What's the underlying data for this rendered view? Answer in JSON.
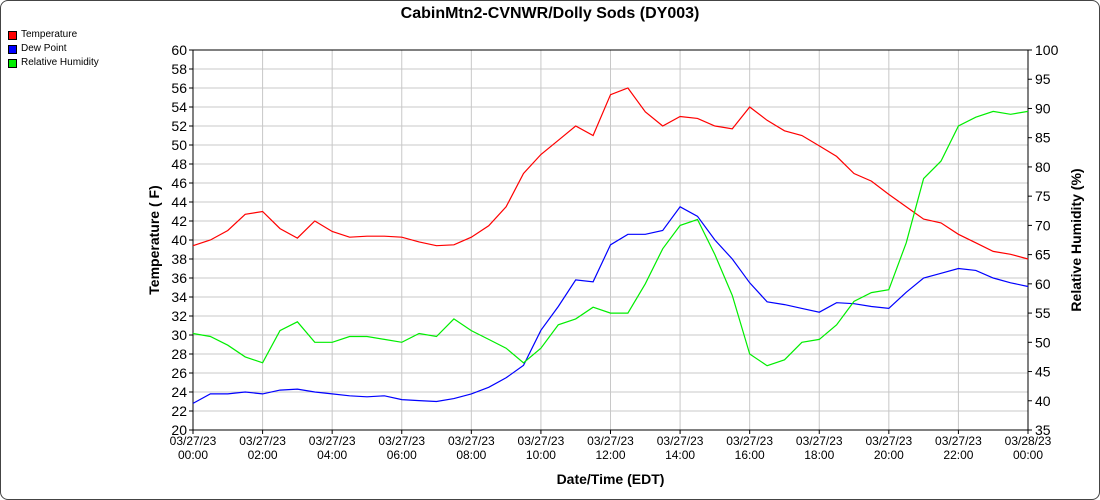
{
  "chart_data": {
    "type": "line",
    "title": "CabinMtn2-CVNWR/Dolly Sods (DY003)",
    "xlabel": "Date/Time (EDT)",
    "ylabel": "Temperature ( F)",
    "y2label": "Relative Humidity (%)",
    "ylim": [
      20,
      60
    ],
    "y2lim": [
      35,
      100
    ],
    "yticks": [
      20,
      22,
      24,
      26,
      28,
      30,
      32,
      34,
      36,
      38,
      40,
      42,
      44,
      46,
      48,
      50,
      52,
      54,
      56,
      58,
      60
    ],
    "y2ticks": [
      35,
      40,
      45,
      50,
      55,
      60,
      65,
      70,
      75,
      80,
      85,
      90,
      95,
      100
    ],
    "xticks": [
      {
        "hour": 0,
        "date": "03/27/23",
        "time": "00:00"
      },
      {
        "hour": 2,
        "date": "03/27/23",
        "time": "02:00"
      },
      {
        "hour": 4,
        "date": "03/27/23",
        "time": "04:00"
      },
      {
        "hour": 6,
        "date": "03/27/23",
        "time": "06:00"
      },
      {
        "hour": 8,
        "date": "03/27/23",
        "time": "08:00"
      },
      {
        "hour": 10,
        "date": "03/27/23",
        "time": "10:00"
      },
      {
        "hour": 12,
        "date": "03/27/23",
        "time": "12:00"
      },
      {
        "hour": 14,
        "date": "03/27/23",
        "time": "14:00"
      },
      {
        "hour": 16,
        "date": "03/27/23",
        "time": "16:00"
      },
      {
        "hour": 18,
        "date": "03/27/23",
        "time": "18:00"
      },
      {
        "hour": 20,
        "date": "03/27/23",
        "time": "20:00"
      },
      {
        "hour": 22,
        "date": "03/27/23",
        "time": "22:00"
      },
      {
        "hour": 24,
        "date": "03/28/23",
        "time": "00:00"
      }
    ],
    "grid": true,
    "legend_position": "top-left",
    "x_hours": [
      0,
      0.5,
      1,
      1.5,
      2,
      2.5,
      3,
      3.5,
      4,
      4.5,
      5,
      5.5,
      6,
      6.5,
      7,
      7.5,
      8,
      8.5,
      9,
      9.5,
      10,
      10.5,
      11,
      11.5,
      12,
      12.5,
      13,
      13.5,
      14,
      14.5,
      15,
      15.5,
      16,
      16.5,
      17,
      17.5,
      18,
      18.5,
      19,
      19.5,
      20,
      20.5,
      21,
      21.5,
      22,
      22.5,
      23,
      23.5,
      24
    ],
    "series": [
      {
        "name": "Temperature",
        "axis": "left",
        "color": "#ff0000",
        "values": [
          39.4,
          40.0,
          41.0,
          42.7,
          43.0,
          41.2,
          40.2,
          42.0,
          40.9,
          40.3,
          40.4,
          40.4,
          40.3,
          39.8,
          39.4,
          39.5,
          40.3,
          41.5,
          43.5,
          47.0,
          49.0,
          50.5,
          52.0,
          51.0,
          55.3,
          56.0,
          53.5,
          52.0,
          53.0,
          52.8,
          52.0,
          51.7,
          54.0,
          52.6,
          51.5,
          51.0,
          49.9,
          48.8,
          47.0,
          46.2,
          44.8,
          43.5,
          42.2,
          41.8,
          40.6,
          39.7,
          38.8,
          38.5,
          38.0
        ]
      },
      {
        "name": "Dew Point",
        "axis": "left",
        "color": "#0000ff",
        "values": [
          22.8,
          23.8,
          23.8,
          24.0,
          23.8,
          24.2,
          24.3,
          24.0,
          23.8,
          23.6,
          23.5,
          23.6,
          23.2,
          23.1,
          23.0,
          23.3,
          23.8,
          24.5,
          25.5,
          26.8,
          30.5,
          33.0,
          35.8,
          35.6,
          39.5,
          40.6,
          40.6,
          41.0,
          43.5,
          42.5,
          40.0,
          38.0,
          35.5,
          33.5,
          33.2,
          32.8,
          32.4,
          33.4,
          33.3,
          33.0,
          32.8,
          34.5,
          36.0,
          36.5,
          37.0,
          36.8,
          36.0,
          35.5,
          35.1
        ]
      },
      {
        "name": "Relative Humidity",
        "axis": "right",
        "color": "#00ee00",
        "values": [
          51.5,
          51.0,
          49.5,
          47.5,
          46.5,
          52.0,
          53.5,
          50.0,
          50.0,
          51.0,
          51.0,
          50.5,
          50.0,
          51.5,
          51.0,
          54.0,
          52.0,
          50.5,
          49.0,
          46.5,
          49.0,
          53.0,
          54.0,
          56.0,
          55.0,
          55.0,
          60.0,
          66.0,
          70.0,
          71.0,
          65.0,
          58.0,
          48.0,
          46.0,
          47.0,
          50.0,
          50.5,
          53.0,
          57.0,
          58.5,
          59.0,
          67.0,
          78.0,
          81.0,
          87.0,
          88.5,
          89.5,
          89.0,
          89.5
        ]
      }
    ]
  }
}
